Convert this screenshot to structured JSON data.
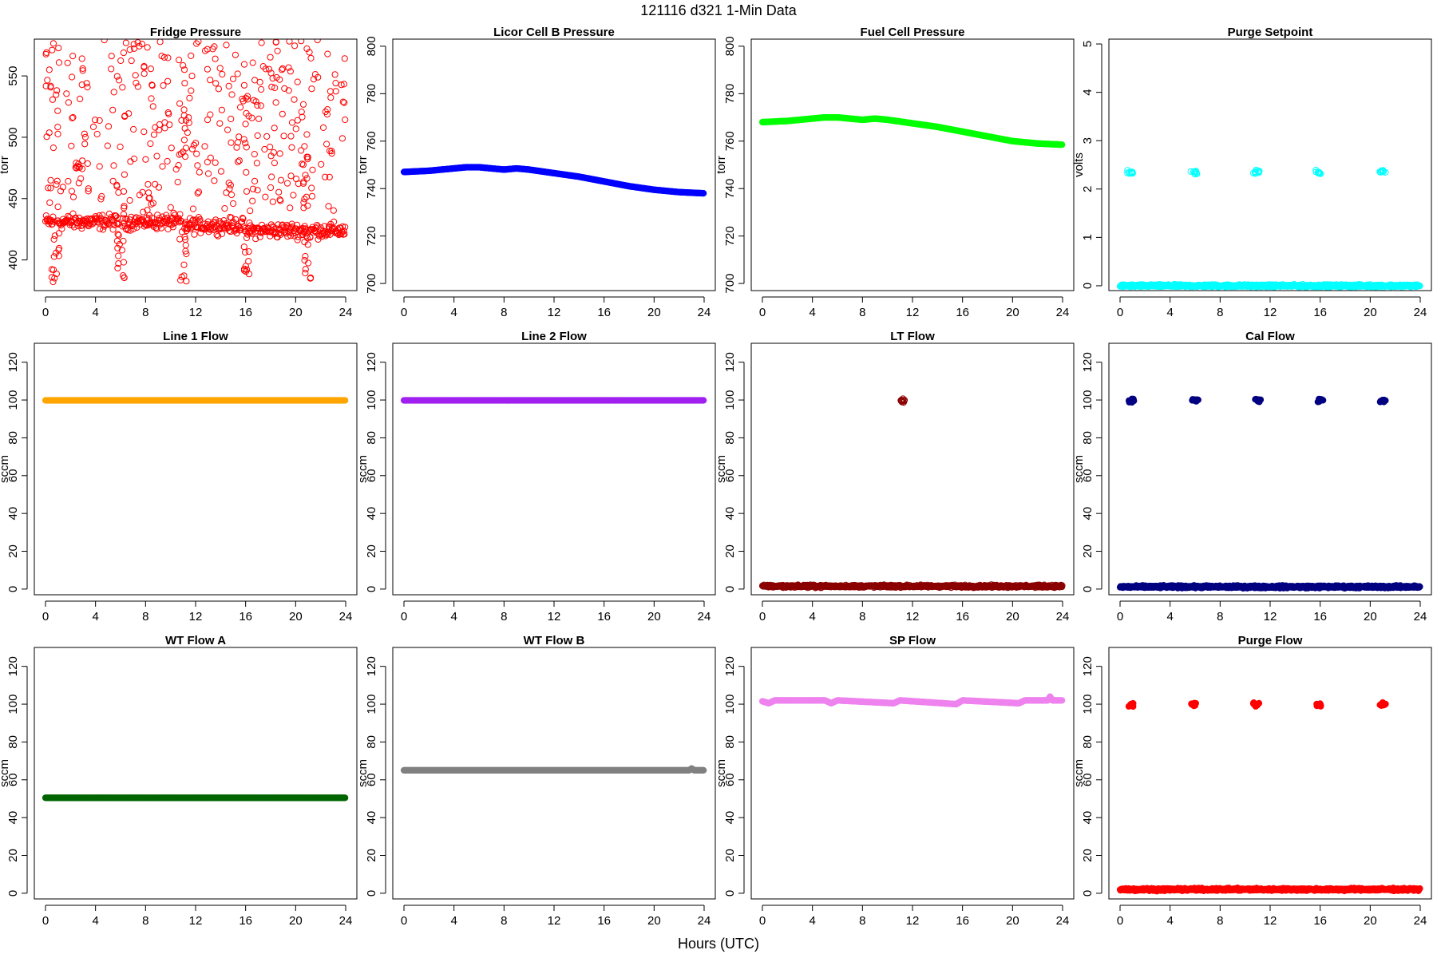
{
  "figure": {
    "title": "121116   d321   1-Min Data",
    "xlabel": "Hours (UTC)"
  },
  "chart_data": [
    {
      "type": "scatter",
      "title": "Fridge Pressure",
      "ylabel": "torr",
      "color": "#ff0000",
      "marker": "open-circle",
      "xlim": [
        0,
        24
      ],
      "ylim": [
        375,
        580
      ],
      "xticks": [
        0,
        4,
        8,
        12,
        16,
        20,
        24
      ],
      "yticks": [
        400,
        450,
        500,
        550
      ],
      "pattern": "fridge",
      "baseline_y": 428,
      "scatter_range": [
        420,
        580
      ],
      "dip_hours": [
        0.8,
        6.0,
        11.0,
        16.0,
        21.0
      ],
      "dip_min": 382
    },
    {
      "type": "line",
      "title": "Licor Cell B Pressure",
      "ylabel": "torr",
      "color": "#0000ff",
      "marker": "filled-circle",
      "xlim": [
        0,
        24
      ],
      "ylim": [
        697,
        803
      ],
      "xticks": [
        0,
        4,
        8,
        12,
        16,
        20,
        24
      ],
      "yticks": [
        700,
        720,
        740,
        760,
        780,
        800
      ],
      "x": [
        0,
        2,
        4,
        5,
        6,
        7,
        8,
        9,
        10,
        12,
        14,
        16,
        18,
        20,
        22,
        24
      ],
      "y": [
        747,
        747.5,
        748.5,
        749,
        749,
        748.5,
        748,
        748.5,
        748,
        746.5,
        745,
        743,
        741,
        739.5,
        738.5,
        738
      ]
    },
    {
      "type": "line",
      "title": "Fuel Cell Pressure",
      "ylabel": "torr",
      "color": "#00ff00",
      "marker": "filled-circle",
      "xlim": [
        0,
        24
      ],
      "ylim": [
        697,
        803
      ],
      "xticks": [
        0,
        4,
        8,
        12,
        16,
        20,
        24
      ],
      "yticks": [
        700,
        720,
        740,
        760,
        780,
        800
      ],
      "x": [
        0,
        2,
        4,
        5,
        6,
        7,
        8,
        9,
        10,
        12,
        14,
        16,
        18,
        20,
        22,
        24
      ],
      "y": [
        768,
        768.5,
        769.5,
        770,
        770,
        769.5,
        769,
        769.5,
        769,
        767.5,
        766,
        764,
        762,
        760,
        759,
        758.5
      ]
    },
    {
      "type": "scatter",
      "title": "Purge Setpoint",
      "ylabel": "volts",
      "color": "#00ffff",
      "marker": "open-circle",
      "xlim": [
        0,
        24
      ],
      "ylim": [
        -0.1,
        5.1
      ],
      "xticks": [
        0,
        4,
        8,
        12,
        16,
        20,
        24
      ],
      "yticks": [
        0,
        1,
        2,
        3,
        4,
        5
      ],
      "pattern": "baseline-with-events",
      "baseline_y": 0,
      "event_hours": [
        0.8,
        5.9,
        10.9,
        15.9,
        21.0
      ],
      "event_y": 2.35
    },
    {
      "type": "line",
      "title": "Line 1 Flow",
      "ylabel": "sccm",
      "color": "#ffa500",
      "marker": "filled-circle",
      "xlim": [
        0,
        24
      ],
      "ylim": [
        -3,
        130
      ],
      "xticks": [
        0,
        4,
        8,
        12,
        16,
        20,
        24
      ],
      "yticks": [
        0,
        20,
        40,
        60,
        80,
        100,
        120
      ],
      "x": [
        0,
        24
      ],
      "y": [
        99.8,
        99.8
      ]
    },
    {
      "type": "line",
      "title": "Line 2 Flow",
      "ylabel": "sccm",
      "color": "#a020f0",
      "marker": "filled-circle",
      "xlim": [
        0,
        24
      ],
      "ylim": [
        -3,
        130
      ],
      "xticks": [
        0,
        4,
        8,
        12,
        16,
        20,
        24
      ],
      "yticks": [
        0,
        20,
        40,
        60,
        80,
        100,
        120
      ],
      "x": [
        0,
        24
      ],
      "y": [
        99.8,
        99.8
      ]
    },
    {
      "type": "scatter",
      "title": "LT Flow",
      "ylabel": "sccm",
      "color": "#8b0000",
      "marker": "open-circle",
      "xlim": [
        0,
        24
      ],
      "ylim": [
        -3,
        130
      ],
      "xticks": [
        0,
        4,
        8,
        12,
        16,
        20,
        24
      ],
      "yticks": [
        0,
        20,
        40,
        60,
        80,
        100,
        120
      ],
      "pattern": "baseline-with-events",
      "baseline_y": 1.5,
      "event_hours": [
        11.2
      ],
      "event_y": 99.5
    },
    {
      "type": "scatter",
      "title": "Cal Flow",
      "ylabel": "sccm",
      "color": "#000080",
      "marker": "filled-circle",
      "xlim": [
        0,
        24
      ],
      "ylim": [
        -3,
        130
      ],
      "xticks": [
        0,
        4,
        8,
        12,
        16,
        20,
        24
      ],
      "yticks": [
        0,
        20,
        40,
        60,
        80,
        100,
        120
      ],
      "pattern": "baseline-with-events",
      "baseline_y": 1.2,
      "event_hours": [
        0.9,
        6.0,
        11.0,
        16.0,
        21.0
      ],
      "event_y": 99.8
    },
    {
      "type": "line",
      "title": "WT Flow A",
      "ylabel": "sccm",
      "color": "#006400",
      "marker": "filled-circle",
      "xlim": [
        0,
        24
      ],
      "ylim": [
        -3,
        130
      ],
      "xticks": [
        0,
        4,
        8,
        12,
        16,
        20,
        24
      ],
      "yticks": [
        0,
        20,
        40,
        60,
        80,
        100,
        120
      ],
      "x": [
        0,
        24
      ],
      "y": [
        50.5,
        50.5
      ]
    },
    {
      "type": "line",
      "title": "WT Flow B",
      "ylabel": "sccm",
      "color": "#808080",
      "marker": "filled-circle",
      "xlim": [
        0,
        24
      ],
      "ylim": [
        -3,
        130
      ],
      "xticks": [
        0,
        4,
        8,
        12,
        16,
        20,
        24
      ],
      "yticks": [
        0,
        20,
        40,
        60,
        80,
        100,
        120
      ],
      "x": [
        0,
        22.8,
        23,
        23.2,
        24
      ],
      "y": [
        65,
        65,
        66,
        65,
        65
      ]
    },
    {
      "type": "line",
      "title": "SP Flow",
      "ylabel": "sccm",
      "color": "#ee82ee",
      "marker": "filled-circle",
      "xlim": [
        0,
        24
      ],
      "ylim": [
        -3,
        130
      ],
      "xticks": [
        0,
        4,
        8,
        12,
        16,
        20,
        24
      ],
      "yticks": [
        0,
        20,
        40,
        60,
        80,
        100,
        120
      ],
      "x": [
        0,
        0.5,
        1,
        5,
        5.5,
        6,
        10.5,
        11,
        15.5,
        16,
        20.5,
        21,
        22.8,
        23,
        23.2,
        24
      ],
      "y": [
        101.5,
        100.5,
        102,
        102,
        100.5,
        102,
        100.5,
        102,
        100,
        102,
        100.5,
        102,
        102,
        104,
        102,
        102
      ]
    },
    {
      "type": "scatter",
      "title": "Purge Flow",
      "ylabel": "sccm",
      "color": "#ff0000",
      "marker": "filled-circle",
      "xlim": [
        0,
        24
      ],
      "ylim": [
        -3,
        130
      ],
      "xticks": [
        0,
        4,
        8,
        12,
        16,
        20,
        24
      ],
      "yticks": [
        0,
        20,
        40,
        60,
        80,
        100,
        120
      ],
      "pattern": "baseline-with-events",
      "baseline_y": 2,
      "event_hours": [
        0.8,
        5.9,
        10.9,
        15.9,
        21.0
      ],
      "event_y": 99.8
    }
  ]
}
